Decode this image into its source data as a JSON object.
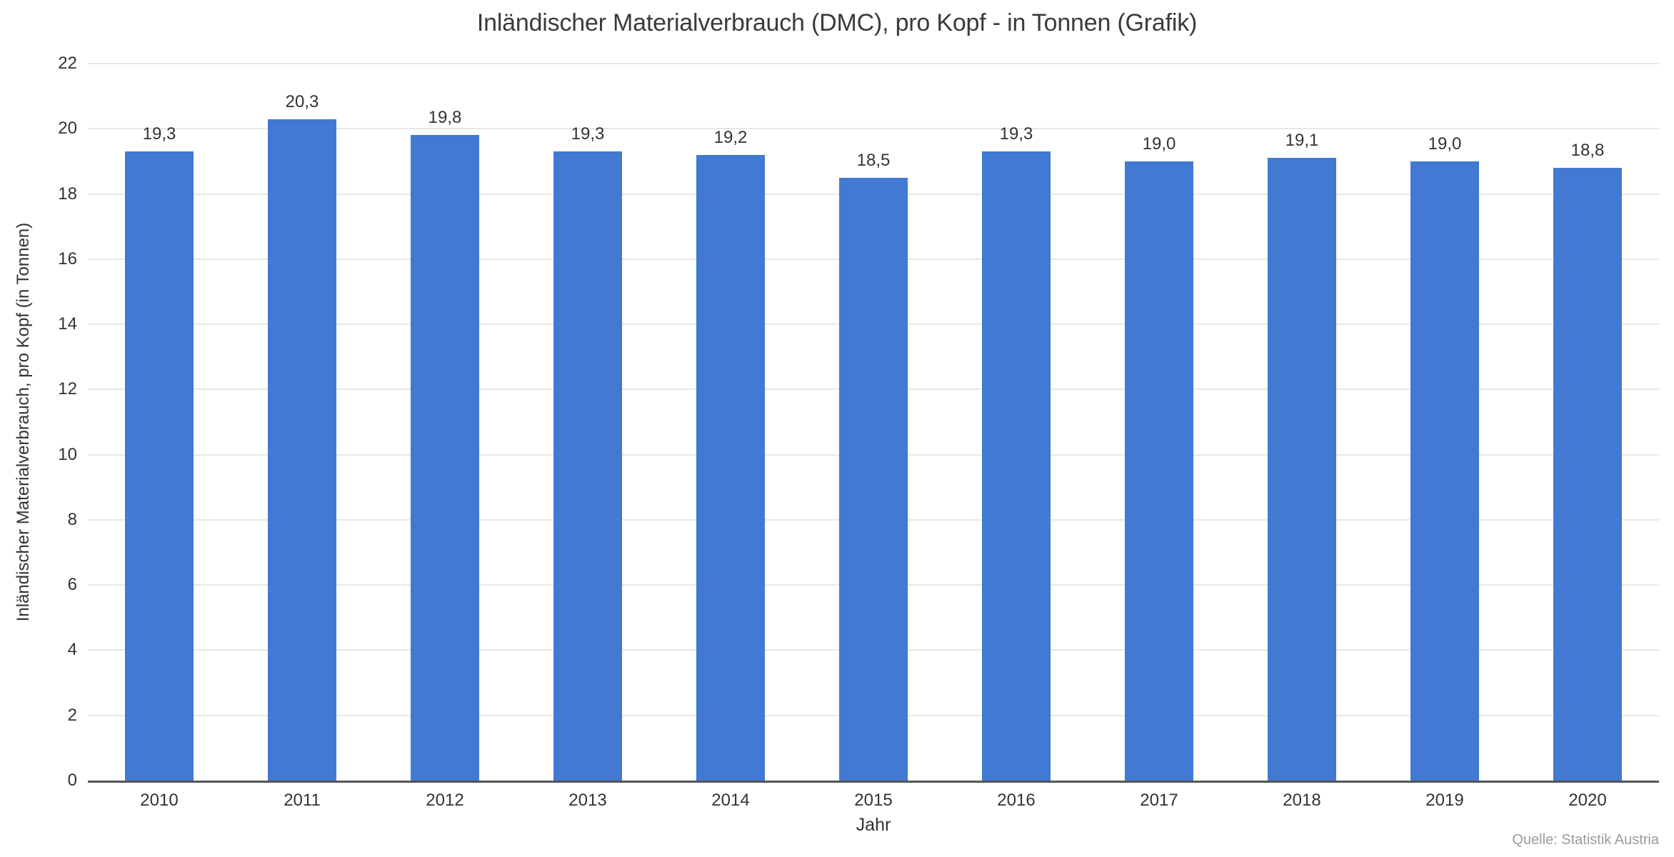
{
  "chart_data": {
    "type": "bar",
    "title": "Inländischer Materialverbrauch (DMC), pro Kopf - in Tonnen (Grafik)",
    "xlabel": "Jahr",
    "ylabel": "Inländischer Materialverbrauch, pro Kopf (in Tonnen)",
    "source": "Quelle: Statistik Austria",
    "categories": [
      "2010",
      "2011",
      "2012",
      "2013",
      "2014",
      "2015",
      "2016",
      "2017",
      "2018",
      "2019",
      "2020"
    ],
    "values": [
      19.3,
      20.3,
      19.8,
      19.3,
      19.2,
      18.5,
      19.3,
      19.0,
      19.1,
      19.0,
      18.8
    ],
    "value_labels": [
      "19,3",
      "20,3",
      "19,8",
      "19,3",
      "19,2",
      "18,5",
      "19,3",
      "19,0",
      "19,1",
      "19,0",
      "18,8"
    ],
    "ylim": [
      0,
      22
    ],
    "y_ticks": [
      0,
      2,
      4,
      6,
      8,
      10,
      12,
      14,
      16,
      18,
      20,
      22
    ],
    "grid": "horizontal",
    "legend": "none",
    "colors": {
      "bar": "#4279d2",
      "gridline": "#e7e7e7",
      "axis_line": "#545454",
      "text": "#333333",
      "title": "#3a3a3a",
      "source": "#9b9b9b"
    }
  }
}
